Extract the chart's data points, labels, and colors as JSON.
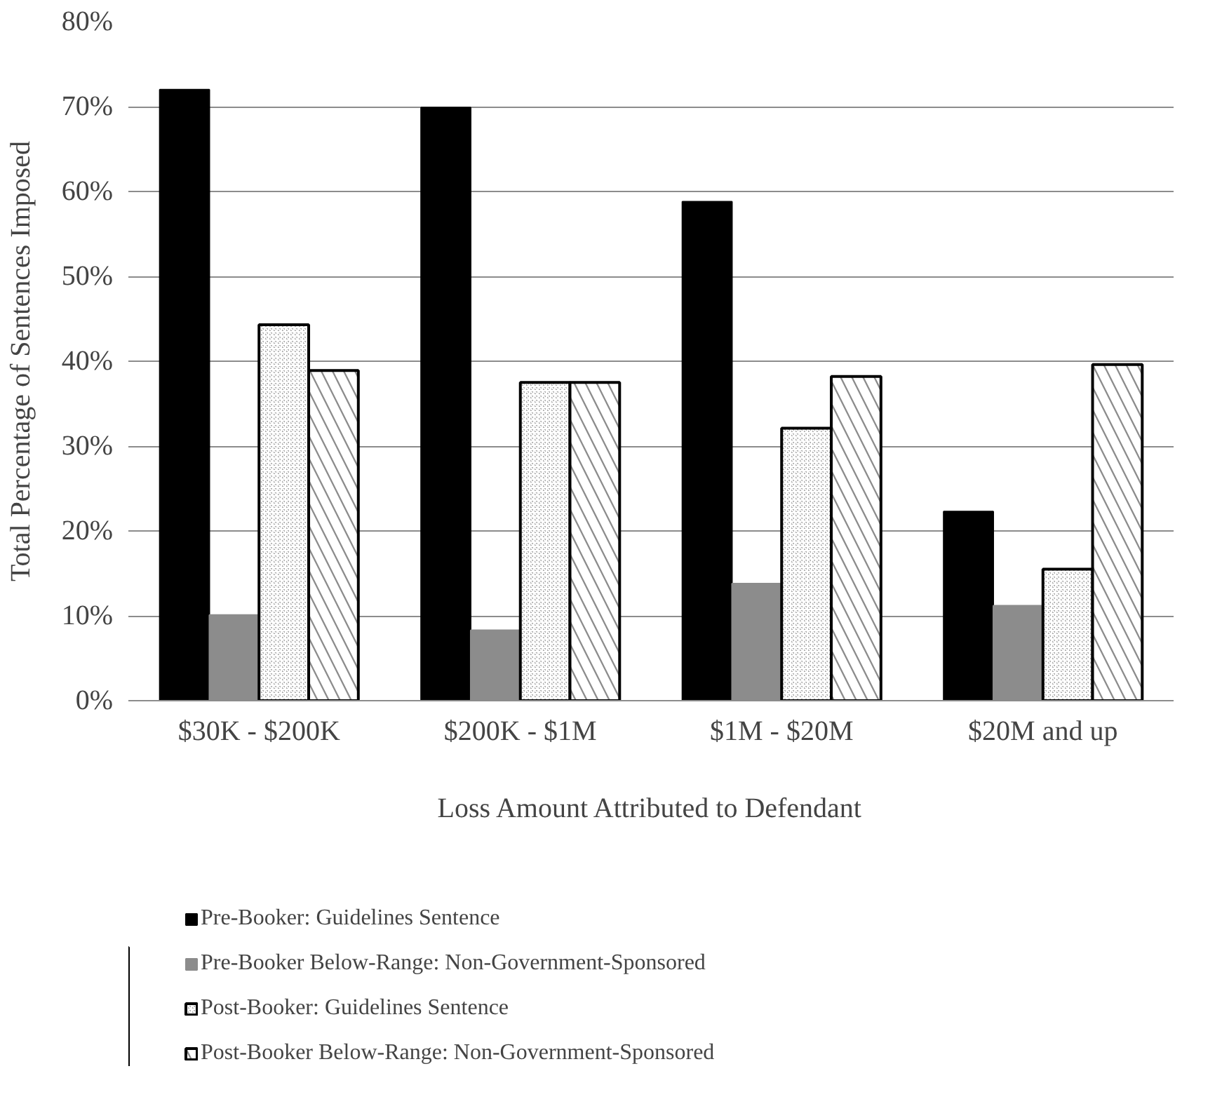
{
  "chart_data": {
    "type": "bar",
    "xlabel": "Loss Amount Attributed to Defendant",
    "ylabel": "Total Percentage of Sentences Imposed",
    "categories": [
      "$30K - $200K",
      "$200K - $1M",
      "$1M - $20M",
      "$20M and up"
    ],
    "series": [
      {
        "name": "Pre-Booker: Guidelines Sentence",
        "color": "#000000",
        "values": [
          72.0,
          69.9,
          58.8,
          22.3
        ]
      },
      {
        "name": "Pre-Booker Below-Range: Non-Government-Sponsored",
        "color": "#8c8c8c",
        "values": [
          10.1,
          8.3,
          13.8,
          11.2
        ]
      },
      {
        "name": "Post-Booker: Guidelines Sentence",
        "color": "#a6a6a6",
        "values": [
          44.3,
          37.5,
          32.1,
          15.5
        ]
      },
      {
        "name": "Post-Booker Below-Range: Non-Government-Sponsored",
        "color": "#8c8c8c",
        "values": [
          38.9,
          37.5,
          38.2,
          39.6
        ]
      }
    ],
    "ylim": [
      0,
      80
    ],
    "yticks": [
      {
        "value": 0,
        "label": "0%"
      },
      {
        "value": 10,
        "label": "10%"
      },
      {
        "value": 20,
        "label": "20%"
      },
      {
        "value": 30,
        "label": "30%"
      },
      {
        "value": 40,
        "label": "40%"
      },
      {
        "value": 50,
        "label": "50%"
      },
      {
        "value": 60,
        "label": "60%"
      },
      {
        "value": 70,
        "label": "70%"
      },
      {
        "value": 80,
        "label": "80%"
      }
    ],
    "grid": "y",
    "legend": "bottom"
  }
}
